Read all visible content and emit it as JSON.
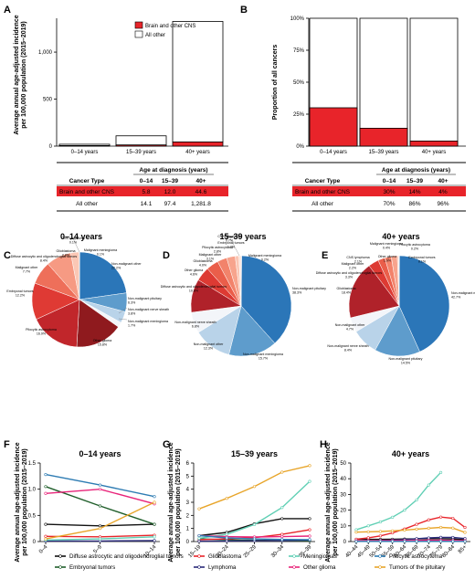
{
  "panel_letters": [
    "A",
    "B",
    "C",
    "D",
    "E",
    "F",
    "G",
    "H"
  ],
  "colors": {
    "brain": "#e8242a",
    "other": "#ffffff",
    "axis": "#000000"
  },
  "chart_data": [
    {
      "id": "A",
      "type": "bar",
      "ylabel": "Average annual age-adjusted incidence per 100,000 population (2015–2019)",
      "categories": [
        "0–14 years",
        "15–39 years",
        "40+ years"
      ],
      "ylim": [
        0,
        1360
      ],
      "yticks": [
        "0",
        "500",
        "1,000"
      ],
      "legend": [
        "Brain and other CNS",
        "All other"
      ],
      "series": [
        {
          "name": "Brain and other CNS",
          "values": [
            5.8,
            12.0,
            44.6
          ]
        },
        {
          "name": "All other",
          "values": [
            14.1,
            97.4,
            1281.8
          ]
        }
      ]
    },
    {
      "id": "B",
      "type": "bar",
      "ylabel": "Proportion of all cancers",
      "categories": [
        "0–14 years",
        "15–39 years",
        "40+ years"
      ],
      "ylim": [
        0,
        100
      ],
      "yticks": [
        "0%",
        "25%",
        "50%",
        "75%",
        "100%"
      ],
      "series": [
        {
          "name": "Brain and other CNS",
          "values": [
            30,
            14,
            4
          ]
        },
        {
          "name": "All other",
          "values": [
            70,
            86,
            96
          ]
        }
      ]
    },
    {
      "id": "A-table",
      "type": "table",
      "header_group": "Age at diagnosis (years)",
      "columns": [
        "Cancer Type",
        "0–14",
        "15–39",
        "40+"
      ],
      "rows": [
        [
          "Brain and other CNS",
          "5.8",
          "12.0",
          "44.6"
        ],
        [
          "All other",
          "14.1",
          "97.4",
          "1,281.8"
        ]
      ]
    },
    {
      "id": "B-table",
      "type": "table",
      "header_group": "Age at diagnosis (years)",
      "columns": [
        "Cancer Type",
        "0–14",
        "15–39",
        "40+"
      ],
      "rows": [
        [
          "Brain and other CNS",
          "30%",
          "14%",
          "4%"
        ],
        [
          "All other",
          "70%",
          "86%",
          "96%"
        ]
      ]
    },
    {
      "id": "C",
      "type": "pie",
      "title": "0–14 years",
      "slices": [
        {
          "label": "Malignant meningioma",
          "pct": "0.1%",
          "value": 0.1,
          "color": "#1f6fb0"
        },
        {
          "label": "Non-malignant other",
          "pct": "22.2%",
          "value": 22.2,
          "color": "#2b76b8"
        },
        {
          "label": "Non-malignant pituitary",
          "pct": "6.3%",
          "value": 6.3,
          "color": "#5e9ccc"
        },
        {
          "label": "Non-malignant nerve sheath",
          "pct": "3.8%",
          "value": 3.8,
          "color": "#b9d3e9"
        },
        {
          "label": "Non-malignant meningioma",
          "pct": "1.7%",
          "value": 1.7,
          "color": "#f3f5f9"
        },
        {
          "label": "Other glioma",
          "pct": "15.8%",
          "value": 15.8,
          "color": "#8f1a1e"
        },
        {
          "label": "Pilocytic astrocytoma",
          "pct": "16.9%",
          "value": 16.9,
          "color": "#c1262b"
        },
        {
          "label": "Embryonal tumors",
          "pct": "12.2%",
          "value": 12.2,
          "color": "#df3a34"
        },
        {
          "label": "Malignant other",
          "pct": "7.7%",
          "value": 7.7,
          "color": "#ee6f5a"
        },
        {
          "label": "Diffuse astrocytic and oligodendroglial tumors",
          "pct": "8.4%",
          "value": 8.4,
          "color": "#f69a83"
        },
        {
          "label": "Glioblastoma",
          "pct": "2.8%",
          "value": 2.8,
          "color": "#fbc7b5"
        },
        {
          "label": "CNS lymphoma",
          "pct": "0.1%",
          "value": 0.1,
          "color": "#fde4da"
        }
      ]
    },
    {
      "id": "D",
      "type": "pie",
      "title": "15–39 years",
      "slices": [
        {
          "label": "Malignant meningioma",
          "pct": "0.2%",
          "value": 0.2,
          "color": "#1f6fb0"
        },
        {
          "label": "Non-malignant pituitary",
          "pct": "38.3%",
          "value": 38.3,
          "color": "#2b76b8"
        },
        {
          "label": "Non-malignant meningioma",
          "pct": "15.7%",
          "value": 15.7,
          "color": "#5e9ccc"
        },
        {
          "label": "Non-malignant other",
          "pct": "12.3%",
          "value": 12.3,
          "color": "#b9d3e9"
        },
        {
          "label": "Non-malignant nerve sheath",
          "pct": "6.8%",
          "value": 6.8,
          "color": "#f3f5f9"
        },
        {
          "label": "Diffuse astrocytic and oligodendroglial tumors",
          "pct": "10.8%",
          "value": 10.8,
          "color": "#b0222a"
        },
        {
          "label": "Other glioma",
          "pct": "4.6%",
          "value": 4.6,
          "color": "#dd3a33"
        },
        {
          "label": "Glioblastoma",
          "pct": "4.0%",
          "value": 4.0,
          "color": "#ea5e4a"
        },
        {
          "label": "Malignant other",
          "pct": "3.1%",
          "value": 3.1,
          "color": "#f2836b"
        },
        {
          "label": "Pilocytic astrocytoma",
          "pct": "2.8%",
          "value": 2.8,
          "color": "#f7a48d"
        },
        {
          "label": "Embryonal tumors",
          "pct": "1.2%",
          "value": 1.2,
          "color": "#fac6b4"
        },
        {
          "label": "CNS lymphoma",
          "pct": "0.7%",
          "value": 0.7,
          "color": "#fde4da"
        }
      ]
    },
    {
      "id": "E",
      "type": "pie",
      "title": "40+ years",
      "slices": [
        {
          "label": "Embryonal tumors",
          "pct": "0.1%",
          "value": 0.1,
          "color": "#1f6fb0"
        },
        {
          "label": "Non-malignant meningioma",
          "pct": "42.7%",
          "value": 42.7,
          "color": "#2b76b8"
        },
        {
          "label": "Non-malignant pituitary",
          "pct": "14.5%",
          "value": 14.5,
          "color": "#5e9ccc"
        },
        {
          "label": "Non-malignant nerve sheath",
          "pct": "8.4%",
          "value": 8.4,
          "color": "#b9d3e9"
        },
        {
          "label": "Non-malignant other",
          "pct": "4.7%",
          "value": 4.7,
          "color": "#f3f5f9"
        },
        {
          "label": "Glioblastoma",
          "pct": "18.4%",
          "value": 18.4,
          "color": "#b0222a"
        },
        {
          "label": "Diffuse astrocytic and oligodendroglial tumors",
          "pct": "3.3%",
          "value": 3.3,
          "color": "#dd3a33"
        },
        {
          "label": "Malignant other",
          "pct": "2.2%",
          "value": 2.2,
          "color": "#ea5e4a"
        },
        {
          "label": "CNS lymphoma",
          "pct": "2.1%",
          "value": 2.1,
          "color": "#f2836b"
        },
        {
          "label": "Other glioma",
          "pct": "1.9%",
          "value": 1.9,
          "color": "#f7a48d"
        },
        {
          "label": "Malignant meningioma",
          "pct": "0.4%",
          "value": 0.4,
          "color": "#fac6b4"
        },
        {
          "label": "Pilocytic astrocytoma",
          "pct": "0.2%",
          "value": 0.2,
          "color": "#fde4da"
        }
      ]
    },
    {
      "id": "F",
      "type": "line",
      "title": "0–14 years",
      "ylabel": "Average annual age-adjusted incidence per 100,000 population (2015–2019)",
      "x": [
        "0–4",
        "5–9",
        "10–14"
      ],
      "ylim": [
        0,
        1.5
      ],
      "yticks": [
        "0",
        "0.5",
        "1.0",
        "1.5"
      ],
      "series": [
        {
          "name": "Diffuse astrocytic and oligodendroglial tumors",
          "color": "#111111",
          "values": [
            0.33,
            0.3,
            0.33
          ]
        },
        {
          "name": "Embryonal tumors",
          "color": "#1f5e2a",
          "values": [
            1.05,
            0.68,
            0.33
          ]
        },
        {
          "name": "Glioblastoma",
          "color": "#e8242a",
          "values": [
            0.1,
            0.09,
            0.12
          ]
        },
        {
          "name": "Lymphoma",
          "color": "#2a2a7a",
          "values": [
            0.01,
            0.01,
            0.02
          ]
        },
        {
          "name": "Meningiomas",
          "color": "#5fcfb4",
          "values": [
            0.03,
            0.05,
            0.09
          ]
        },
        {
          "name": "Other glioma",
          "color": "#e8247a",
          "values": [
            0.92,
            1.0,
            0.72
          ]
        },
        {
          "name": "Pilocytic astrocytoma",
          "color": "#2e7cb3",
          "values": [
            1.28,
            1.08,
            0.86
          ]
        },
        {
          "name": "Tumors of the pituitary",
          "color": "#e8a52a",
          "values": [
            0.05,
            0.25,
            0.75
          ]
        }
      ]
    },
    {
      "id": "G",
      "type": "line",
      "title": "15–39 years",
      "ylabel": "Average annual age-adjusted incidence per 100,000 population (2015–2019)",
      "x": [
        "15–19",
        "20–24",
        "25–29",
        "30–34",
        "35–39"
      ],
      "ylim": [
        0,
        6
      ],
      "yticks": [
        "0",
        "1",
        "2",
        "3",
        "4",
        "5",
        "6"
      ],
      "series": [
        {
          "name": "Diffuse astrocytic and oligodendroglial tumors",
          "color": "#111111",
          "values": [
            0.45,
            0.7,
            1.35,
            1.75,
            1.75
          ]
        },
        {
          "name": "Embryonal tumors",
          "color": "#1f5e2a",
          "values": [
            0.2,
            0.13,
            0.1,
            0.08,
            0.07
          ]
        },
        {
          "name": "Glioblastoma",
          "color": "#e8242a",
          "values": [
            0.15,
            0.2,
            0.3,
            0.55,
            0.9
          ]
        },
        {
          "name": "Lymphoma",
          "color": "#2a2a7a",
          "values": [
            0.03,
            0.04,
            0.06,
            0.08,
            0.12
          ]
        },
        {
          "name": "Meningiomas",
          "color": "#5fcfb4",
          "values": [
            0.25,
            0.55,
            1.3,
            2.6,
            4.6
          ]
        },
        {
          "name": "Other glioma",
          "color": "#e8247a",
          "values": [
            0.45,
            0.38,
            0.35,
            0.38,
            0.42
          ]
        },
        {
          "name": "Pilocytic astrocytoma",
          "color": "#2e7cb3",
          "values": [
            0.45,
            0.28,
            0.2,
            0.16,
            0.15
          ]
        },
        {
          "name": "Tumors of the pituitary",
          "color": "#e8a52a",
          "values": [
            2.5,
            3.3,
            4.2,
            5.3,
            5.8
          ]
        }
      ]
    },
    {
      "id": "H",
      "type": "line",
      "title": "40+ years",
      "ylabel": "Average annual age-adjusted incidence per 100,000 population (2015–2019)",
      "x": [
        "40–44",
        "45–49",
        "50–54",
        "55–59",
        "60–64",
        "65–69",
        "70–74",
        "75–79",
        "80–84",
        "85+"
      ],
      "ylim": [
        0,
        50
      ],
      "yticks": [
        "0",
        "10",
        "20",
        "30",
        "40",
        "50"
      ],
      "series": [
        {
          "name": "Diffuse astrocytic and oligodendroglial tumors",
          "color": "#111111",
          "values": [
            1.5,
            1.4,
            1.4,
            1.5,
            1.6,
            1.7,
            1.8,
            1.8,
            1.6,
            1.2
          ]
        },
        {
          "name": "Embryonal tumors",
          "color": "#1f5e2a",
          "values": [
            0.1,
            0.1,
            0.1,
            0.1,
            0.1,
            0.1,
            0.1,
            0.1,
            0.1,
            0.1
          ]
        },
        {
          "name": "Glioblastoma",
          "color": "#e8242a",
          "values": [
            1.5,
            2.4,
            3.6,
            5.5,
            8.0,
            11.0,
            13.8,
            15.6,
            14.8,
            9.0
          ]
        },
        {
          "name": "Lymphoma",
          "color": "#2a2a7a",
          "values": [
            0.3,
            0.4,
            0.6,
            0.9,
            1.3,
            1.8,
            2.3,
            2.7,
            2.6,
            1.9
          ]
        },
        {
          "name": "Meningiomas",
          "color": "#5fcfb4",
          "values": [
            7.5,
            10.0,
            12.5,
            15.5,
            20.0,
            26.5,
            36.0,
            44.0,
            null,
            null
          ]
        },
        {
          "name": "Other glioma",
          "color": "#e8247a",
          "values": [
            0.5,
            0.5,
            0.5,
            0.6,
            0.6,
            0.7,
            0.8,
            0.8,
            0.7,
            0.6
          ]
        },
        {
          "name": "Pilocytic astrocytoma",
          "color": "#2e7cb3",
          "values": [
            0.1,
            0.1,
            0.1,
            0.1,
            0.1,
            0.1,
            0.1,
            0.1,
            0.1,
            0.1
          ]
        },
        {
          "name": "Tumors of the pituitary",
          "color": "#e8a52a",
          "values": [
            6.0,
            6.2,
            6.4,
            6.8,
            7.3,
            7.9,
            8.5,
            9.0,
            8.6,
            5.8
          ]
        }
      ]
    }
  ],
  "legend_items": [
    {
      "name": "Diffuse astrocytic and oligodendroglial tumors",
      "color": "#111111"
    },
    {
      "name": "Glioblastoma",
      "color": "#e8242a"
    },
    {
      "name": "Meningiomas",
      "color": "#5fcfb4"
    },
    {
      "name": "Pilocytic astrocytoma",
      "color": "#2e7cb3"
    },
    {
      "name": "Embryonal tumors",
      "color": "#1f5e2a"
    },
    {
      "name": "Lymphoma",
      "color": "#2a2a7a"
    },
    {
      "name": "Other glioma",
      "color": "#e8247a"
    },
    {
      "name": "Tumors of the pituitary",
      "color": "#e8a52a"
    }
  ]
}
